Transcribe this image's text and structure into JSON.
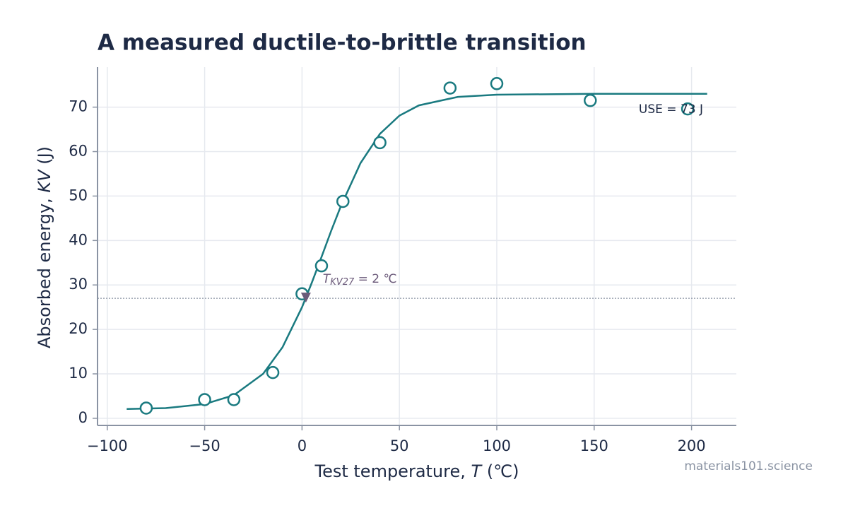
{
  "chart_data": {
    "type": "scatter",
    "title": "A measured ductile-to-brittle transition",
    "x_label": {
      "before": "Test temperature, ",
      "italic": "T",
      "after": " (℃)"
    },
    "y_label": {
      "before": "Absorbed energy, ",
      "italic": "KV",
      "after": " (J)"
    },
    "x": [
      -80,
      -50,
      -35,
      -15,
      0,
      10,
      21,
      40,
      76,
      100,
      148,
      198
    ],
    "values": [
      2.3,
      4.2,
      4.2,
      10.3,
      28,
      34.3,
      48.8,
      62,
      74.3,
      75.3,
      71.5,
      69.6
    ],
    "color": "#1a7a80",
    "fit": {
      "x": [
        -90,
        -70,
        -50,
        -35,
        -20,
        -10,
        0,
        5,
        10,
        15,
        20,
        30,
        40,
        50,
        60,
        80,
        100,
        150,
        208
      ],
      "values": [
        2.1,
        2.3,
        3.2,
        5.2,
        10.0,
        16.0,
        25.0,
        30.5,
        36.3,
        42.2,
        47.8,
        57.4,
        64.0,
        68.1,
        70.4,
        72.3,
        72.8,
        73.0,
        73.0
      ]
    },
    "threshold": {
      "value": 27,
      "temperature": 2,
      "label_T": "T",
      "label_sub": "KV27",
      "label_rest": " = 2 ℃",
      "color": "#6b5a7a"
    },
    "use_label": "USE = 73 J",
    "watermark": "materials101.science",
    "xlim": [
      -105,
      223
    ],
    "ylim": [
      -1.6,
      79
    ],
    "xticks": [
      {
        "value": -100,
        "label": "−100"
      },
      {
        "value": -50,
        "label": "−50"
      },
      0,
      50,
      100,
      150,
      200
    ],
    "yticks": [
      0,
      10,
      20,
      30,
      40,
      50,
      60,
      70
    ],
    "grid": true
  }
}
